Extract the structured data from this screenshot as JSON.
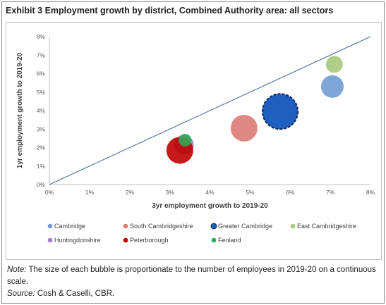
{
  "title": "Exhibit 3 Employment growth by district, Combined Authority area: all sectors",
  "chart_data": {
    "type": "scatter",
    "subtype": "bubble",
    "xlabel": "3yr employment growth to 2019-20",
    "ylabel": "1yr employment growth to 2019-20",
    "xlim": [
      0,
      8
    ],
    "ylim": [
      0,
      8
    ],
    "x_ticks": [
      "0%",
      "1%",
      "2%",
      "3%",
      "4%",
      "5%",
      "6%",
      "7%",
      "8%"
    ],
    "y_ticks": [
      "0%",
      "1%",
      "2%",
      "3%",
      "4%",
      "5%",
      "6%",
      "7%",
      "8%"
    ],
    "reference_line": {
      "from": [
        0,
        0
      ],
      "to": [
        8,
        8
      ]
    },
    "grid": false,
    "legend_position": "bottom",
    "series": [
      {
        "name": "Cambridge",
        "x": 7.05,
        "y": 5.3,
        "size": 16,
        "color": "#6f9bd0"
      },
      {
        "name": "South Cambridgeshire",
        "x": 4.85,
        "y": 3.05,
        "size": 19,
        "color": "#da7b78"
      },
      {
        "name": "Greater Cambridge",
        "x": 5.75,
        "y": 3.95,
        "size": 25,
        "color": "#1f5fc0",
        "outline": "#0b2d63",
        "dashed_outline": true
      },
      {
        "name": "East Cambridgeshire",
        "x": 7.1,
        "y": 6.5,
        "size": 12,
        "color": "#a9c97c"
      },
      {
        "name": "Huntingdonshire",
        "x": 3.35,
        "y": 2.15,
        "size": 14,
        "color": "#9d84c4"
      },
      {
        "name": "Peterborough",
        "x": 3.25,
        "y": 1.85,
        "size": 19,
        "color": "#c00000"
      },
      {
        "name": "Fenland",
        "x": 3.38,
        "y": 2.4,
        "size": 9,
        "color": "#2eaa55"
      }
    ]
  },
  "note": {
    "label": "Note:",
    "text": "The size of each bubble is proportionate to the number of employees in 2019-20 on a continuous scale.",
    "source_label": "Source:",
    "source_text": "Cosh & Caselli, CBR."
  }
}
